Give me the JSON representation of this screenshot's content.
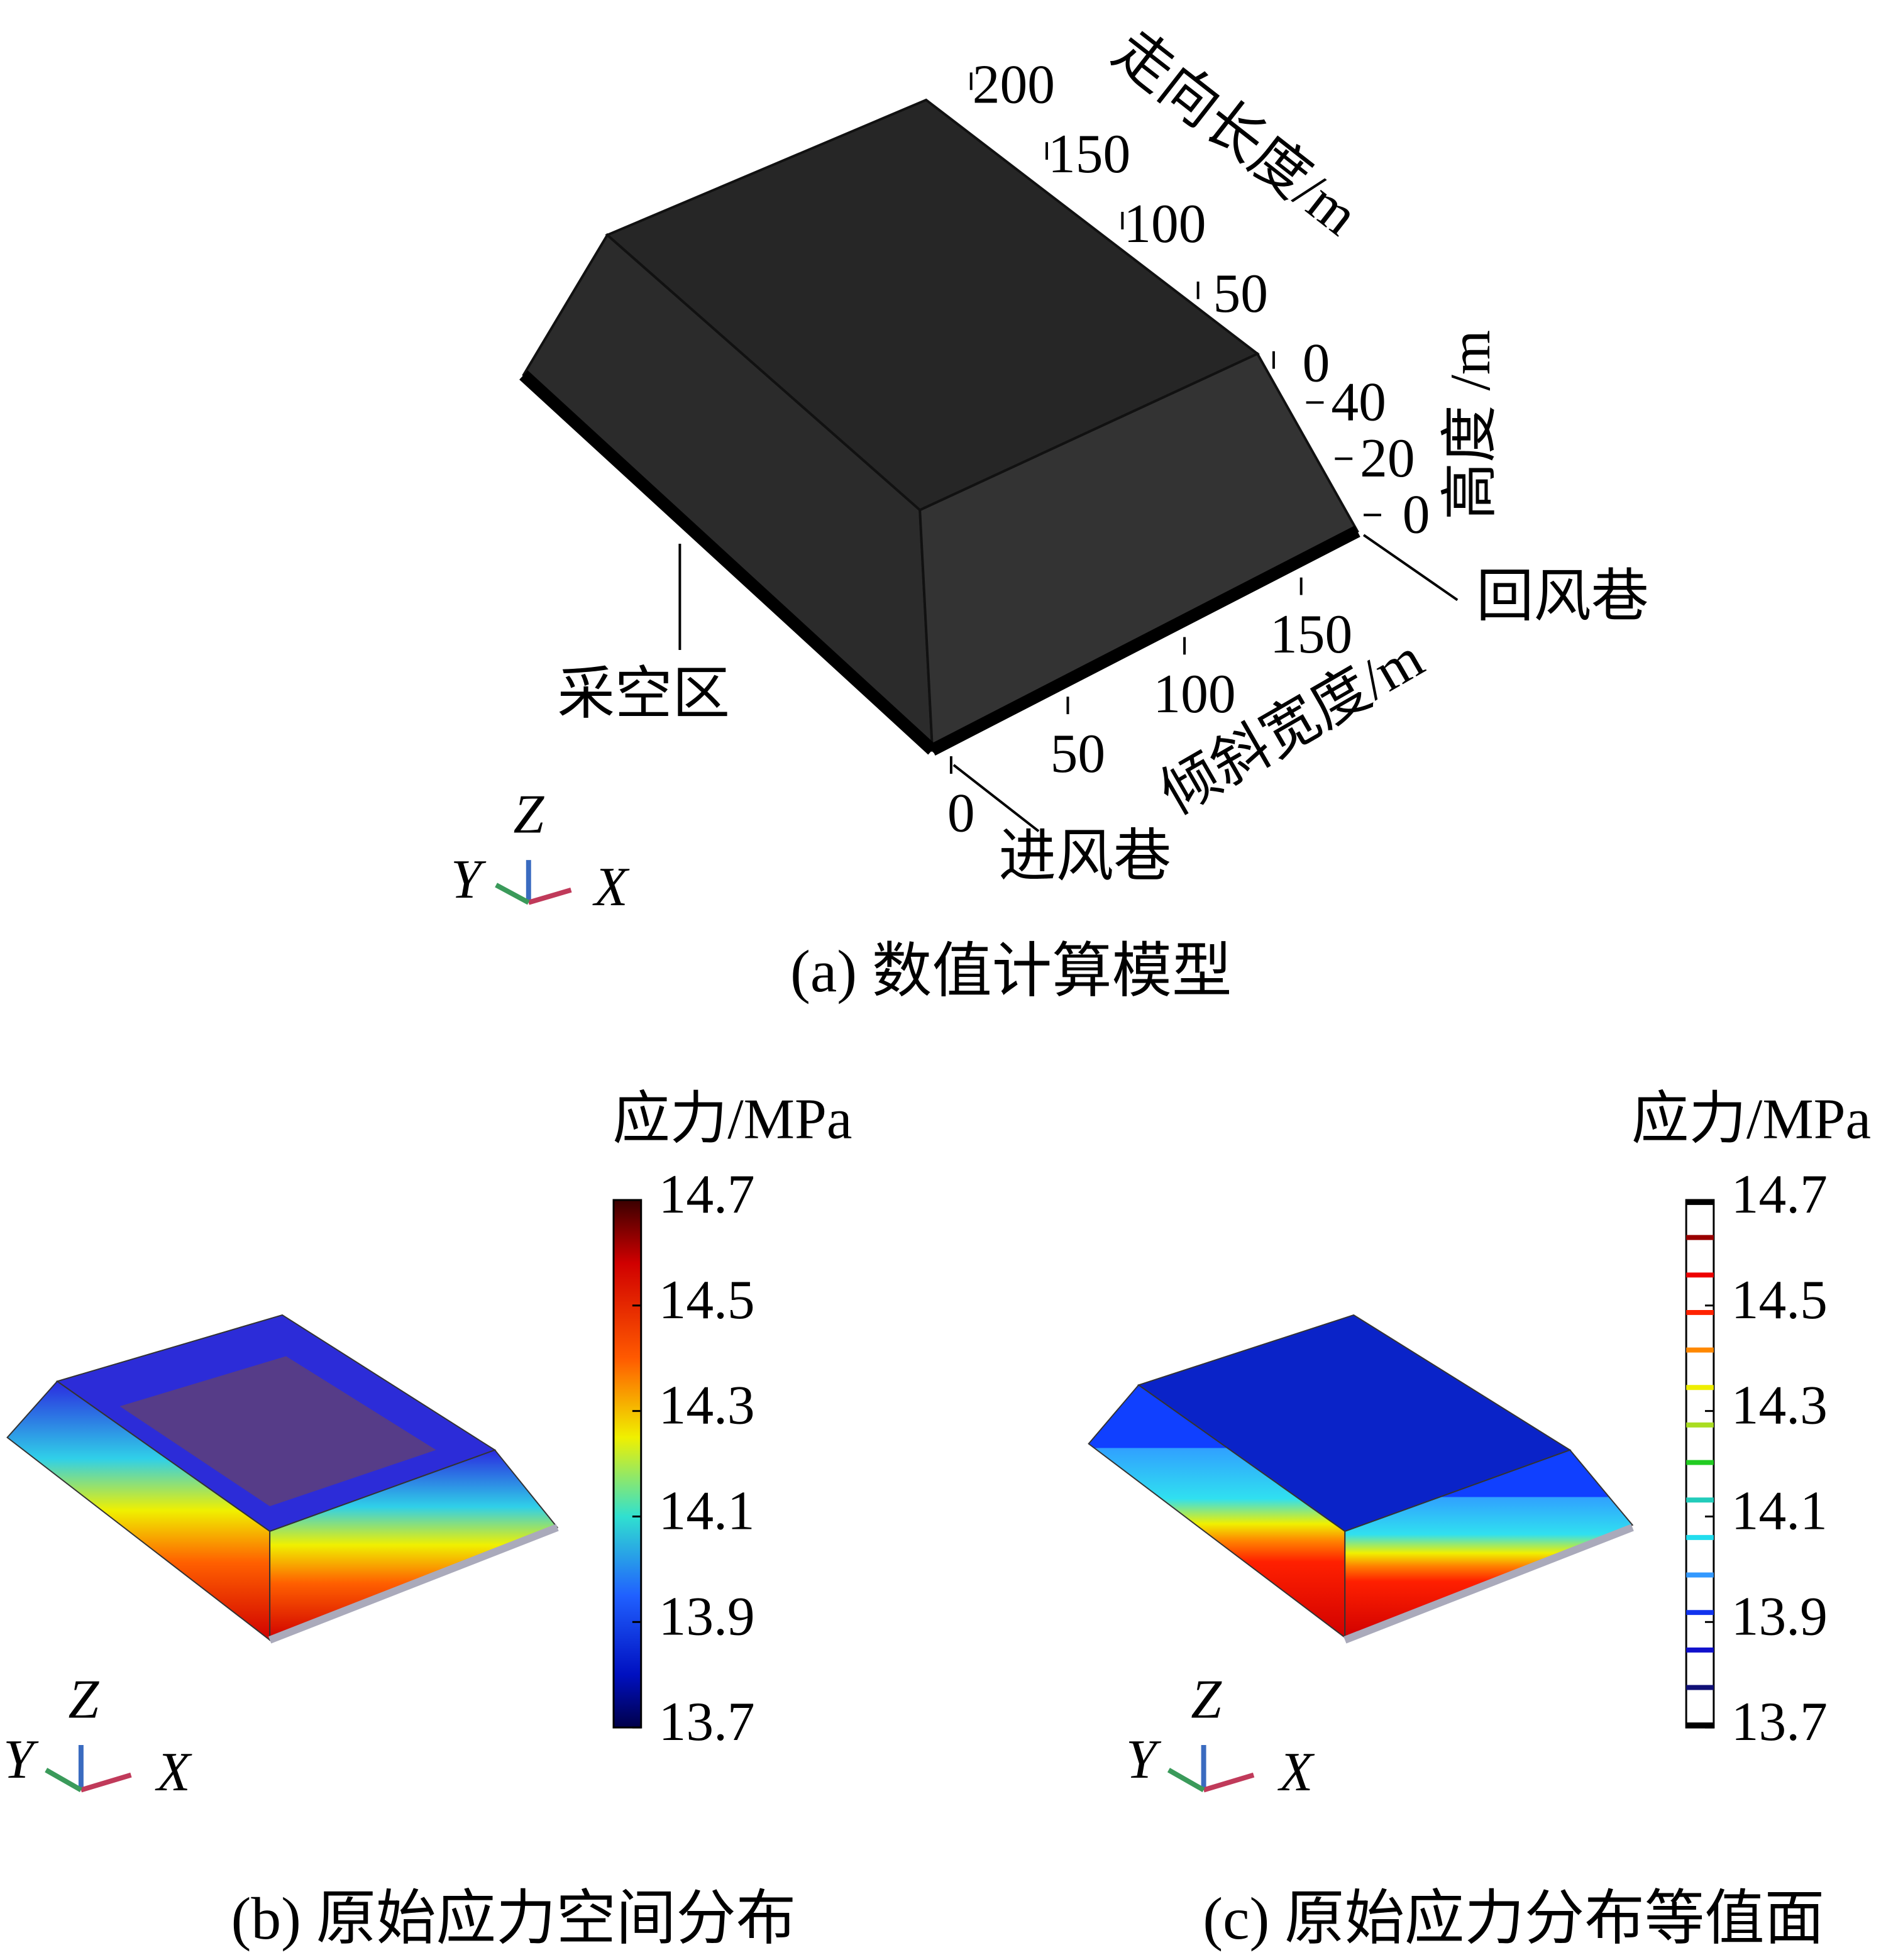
{
  "panel_a": {
    "caption": "(a) 数值计算模型",
    "axes": {
      "strike_length": {
        "label": "走向长度/m",
        "ticks": [
          0,
          50,
          100,
          150,
          200
        ]
      },
      "height": {
        "label": "高度 /m",
        "ticks": [
          0,
          20,
          40
        ]
      },
      "dip_width": {
        "label": "倾斜宽度/m",
        "ticks": [
          0,
          50,
          100,
          150
        ]
      }
    },
    "annotations": {
      "goaf": "采空区",
      "return_airway": "回风巷",
      "intake_airway": "进风巷"
    },
    "triad": {
      "z": "Z",
      "y": "Y",
      "x": "X"
    }
  },
  "panel_b": {
    "caption": "(b) 原始应力空间分布",
    "colorbar": {
      "title": "应力/MPa",
      "range": [
        13.7,
        14.7
      ],
      "ticks": [
        13.7,
        13.9,
        14.1,
        14.3,
        14.5,
        14.7
      ]
    },
    "triad": {
      "z": "Z",
      "y": "Y",
      "x": "X"
    }
  },
  "panel_c": {
    "caption": "(c) 原始应力分布等值面",
    "colorbar": {
      "title": "应力/MPa",
      "range": [
        13.7,
        14.7
      ],
      "ticks": [
        13.7,
        13.9,
        14.1,
        14.3,
        14.5,
        14.7
      ]
    },
    "triad": {
      "z": "Z",
      "y": "Y",
      "x": "X"
    }
  }
}
